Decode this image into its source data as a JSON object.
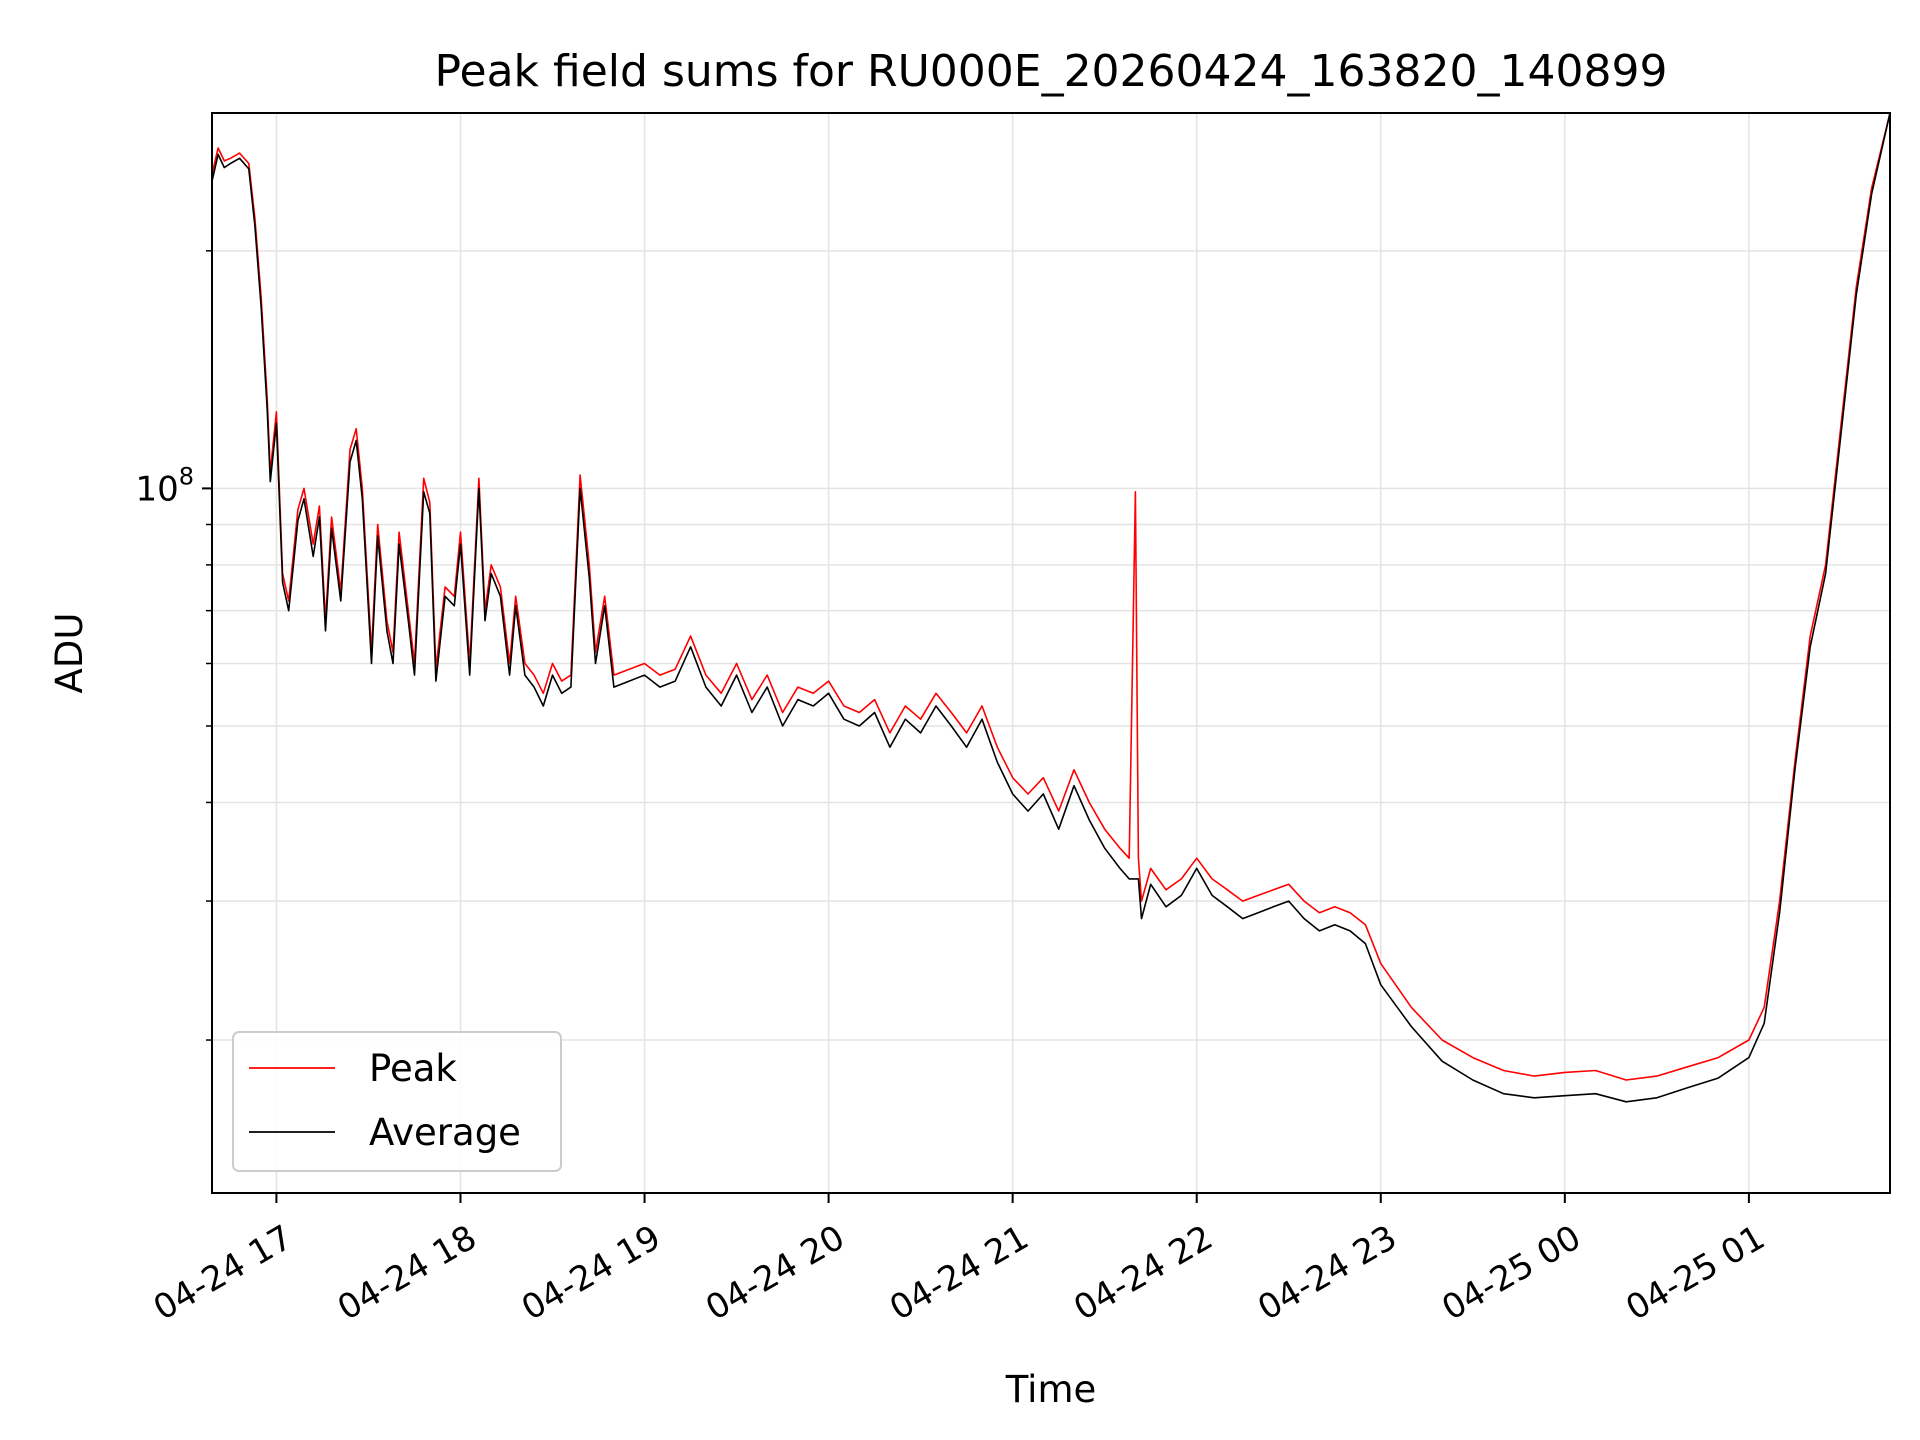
{
  "chart_data": {
    "type": "line",
    "title": "Peak field sums for RU000E_20260424_163820_140899",
    "xlabel": "Time",
    "ylabel": "ADU",
    "y_scale": "log",
    "ylim": [
      12800000,
      299000000
    ],
    "xlim": [
      "04-24 16:39",
      "04-25 01:46"
    ],
    "grid": true,
    "legend_position": "lower-left",
    "x_tick_labels": [
      "04-24 17",
      "04-24 18",
      "04-24 19",
      "04-24 20",
      "04-24 21",
      "04-24 22",
      "04-24 23",
      "04-25 00",
      "04-25 01"
    ],
    "x_ticks": [
      "04-24 17:00",
      "04-24 18:00",
      "04-24 19:00",
      "04-24 20:00",
      "04-24 21:00",
      "04-24 22:00",
      "04-24 23:00",
      "04-25 00:00",
      "04-25 01:00"
    ],
    "y_tick_label": "10^8",
    "y_tick_value": 100000000,
    "series": [
      {
        "name": "Peak",
        "color": "#ff0000",
        "x": [
          "04-24 16:39",
          "04-24 16:41",
          "04-24 16:43",
          "04-24 16:45",
          "04-24 16:48",
          "04-24 16:51",
          "04-24 16:53",
          "04-24 16:55",
          "04-24 16:57",
          "04-24 16:58",
          "04-24 17:00",
          "04-24 17:02",
          "04-24 17:04",
          "04-24 17:07",
          "04-24 17:09",
          "04-24 17:12",
          "04-24 17:14",
          "04-24 17:16",
          "04-24 17:18",
          "04-24 17:21",
          "04-24 17:24",
          "04-24 17:26",
          "04-24 17:28",
          "04-24 17:31",
          "04-24 17:33",
          "04-24 17:36",
          "04-24 17:38",
          "04-24 17:40",
          "04-24 17:43",
          "04-24 17:45",
          "04-24 17:48",
          "04-24 17:50",
          "04-24 17:52",
          "04-24 17:55",
          "04-24 17:58",
          "04-24 18:00",
          "04-24 18:03",
          "04-24 18:06",
          "04-24 18:08",
          "04-24 18:10",
          "04-24 18:13",
          "04-24 18:16",
          "04-24 18:18",
          "04-24 18:21",
          "04-24 18:24",
          "04-24 18:27",
          "04-24 18:30",
          "04-24 18:33",
          "04-24 18:36",
          "04-24 18:39",
          "04-24 18:42",
          "04-24 18:44",
          "04-24 18:47",
          "04-24 18:50",
          "04-24 18:55",
          "04-24 19:00",
          "04-24 19:05",
          "04-24 19:10",
          "04-24 19:15",
          "04-24 19:20",
          "04-24 19:25",
          "04-24 19:30",
          "04-24 19:35",
          "04-24 19:40",
          "04-24 19:45",
          "04-24 19:50",
          "04-24 19:55",
          "04-24 20:00",
          "04-24 20:05",
          "04-24 20:10",
          "04-24 20:15",
          "04-24 20:20",
          "04-24 20:25",
          "04-24 20:30",
          "04-24 20:35",
          "04-24 20:40",
          "04-24 20:45",
          "04-24 20:50",
          "04-24 20:55",
          "04-24 21:00",
          "04-24 21:05",
          "04-24 21:10",
          "04-24 21:15",
          "04-24 21:20",
          "04-24 21:25",
          "04-24 21:30",
          "04-24 21:35",
          "04-24 21:38",
          "04-24 21:40",
          "04-24 21:41",
          "04-24 21:42",
          "04-24 21:45",
          "04-24 21:50",
          "04-24 21:55",
          "04-24 22:00",
          "04-24 22:05",
          "04-24 22:10",
          "04-24 22:15",
          "04-24 22:20",
          "04-24 22:25",
          "04-24 22:30",
          "04-24 22:35",
          "04-24 22:40",
          "04-24 22:45",
          "04-24 22:50",
          "04-24 22:55",
          "04-24 23:00",
          "04-24 23:10",
          "04-24 23:20",
          "04-24 23:30",
          "04-24 23:40",
          "04-24 23:50",
          "04-25 00:00",
          "04-25 00:10",
          "04-25 00:20",
          "04-25 00:30",
          "04-25 00:40",
          "04-25 00:50",
          "04-25 01:00",
          "04-25 01:05",
          "04-25 01:10",
          "04-25 01:15",
          "04-25 01:20",
          "04-25 01:25",
          "04-25 01:30",
          "04-25 01:35",
          "04-25 01:40",
          "04-25 01:46"
        ],
        "values": [
          250000000,
          270000000,
          260000000,
          262000000,
          266000000,
          258000000,
          220000000,
          175000000,
          130000000,
          105000000,
          125000000,
          78000000,
          72000000,
          94000000,
          100000000,
          85000000,
          95000000,
          68000000,
          92000000,
          74000000,
          112000000,
          119000000,
          100000000,
          62000000,
          90000000,
          68000000,
          62000000,
          88000000,
          70000000,
          60000000,
          103000000,
          96000000,
          59000000,
          75000000,
          73000000,
          88000000,
          60000000,
          103000000,
          70000000,
          80000000,
          75000000,
          60000000,
          73000000,
          60000000,
          58000000,
          55000000,
          60000000,
          57000000,
          58000000,
          104000000,
          80000000,
          62000000,
          73000000,
          58000000,
          59000000,
          60000000,
          58000000,
          59000000,
          65000000,
          58000000,
          55000000,
          60000000,
          54000000,
          58000000,
          52000000,
          56000000,
          55000000,
          57000000,
          53000000,
          52000000,
          54000000,
          49000000,
          53000000,
          51000000,
          55000000,
          52000000,
          49000000,
          53000000,
          47000000,
          43000000,
          41000000,
          43000000,
          39000000,
          44000000,
          40000000,
          37000000,
          35000000,
          34000000,
          99000000,
          34000000,
          30000000,
          33000000,
          31000000,
          32000000,
          34000000,
          32000000,
          31000000,
          30000000,
          30500000,
          31000000,
          31500000,
          30000000,
          29000000,
          29500000,
          29000000,
          28000000,
          25000000,
          22000000,
          20000000,
          19000000,
          18300000,
          18000000,
          18200000,
          18300000,
          17800000,
          18000000,
          18500000,
          19000000,
          20000000,
          22000000,
          30000000,
          45000000,
          65000000,
          80000000,
          120000000,
          180000000,
          240000000,
          299000000
        ]
      },
      {
        "name": "Average",
        "color": "#000000",
        "x": [
          "04-24 16:39",
          "04-24 16:41",
          "04-24 16:43",
          "04-24 16:45",
          "04-24 16:48",
          "04-24 16:51",
          "04-24 16:53",
          "04-24 16:55",
          "04-24 16:57",
          "04-24 16:58",
          "04-24 17:00",
          "04-24 17:02",
          "04-24 17:04",
          "04-24 17:07",
          "04-24 17:09",
          "04-24 17:12",
          "04-24 17:14",
          "04-24 17:16",
          "04-24 17:18",
          "04-24 17:21",
          "04-24 17:24",
          "04-24 17:26",
          "04-24 17:28",
          "04-24 17:31",
          "04-24 17:33",
          "04-24 17:36",
          "04-24 17:38",
          "04-24 17:40",
          "04-24 17:43",
          "04-24 17:45",
          "04-24 17:48",
          "04-24 17:50",
          "04-24 17:52",
          "04-24 17:55",
          "04-24 17:58",
          "04-24 18:00",
          "04-24 18:03",
          "04-24 18:06",
          "04-24 18:08",
          "04-24 18:10",
          "04-24 18:13",
          "04-24 18:16",
          "04-24 18:18",
          "04-24 18:21",
          "04-24 18:24",
          "04-24 18:27",
          "04-24 18:30",
          "04-24 18:33",
          "04-24 18:36",
          "04-24 18:39",
          "04-24 18:42",
          "04-24 18:44",
          "04-24 18:47",
          "04-24 18:50",
          "04-24 18:55",
          "04-24 19:00",
          "04-24 19:05",
          "04-24 19:10",
          "04-24 19:15",
          "04-24 19:20",
          "04-24 19:25",
          "04-24 19:30",
          "04-24 19:35",
          "04-24 19:40",
          "04-24 19:45",
          "04-24 19:50",
          "04-24 19:55",
          "04-24 20:00",
          "04-24 20:05",
          "04-24 20:10",
          "04-24 20:15",
          "04-24 20:20",
          "04-24 20:25",
          "04-24 20:30",
          "04-24 20:35",
          "04-24 20:40",
          "04-24 20:45",
          "04-24 20:50",
          "04-24 20:55",
          "04-24 21:00",
          "04-24 21:05",
          "04-24 21:10",
          "04-24 21:15",
          "04-24 21:20",
          "04-24 21:25",
          "04-24 21:30",
          "04-24 21:35",
          "04-24 21:38",
          "04-24 21:40",
          "04-24 21:41",
          "04-24 21:42",
          "04-24 21:45",
          "04-24 21:50",
          "04-24 21:55",
          "04-24 22:00",
          "04-24 22:05",
          "04-24 22:10",
          "04-24 22:15",
          "04-24 22:20",
          "04-24 22:25",
          "04-24 22:30",
          "04-24 22:35",
          "04-24 22:40",
          "04-24 22:45",
          "04-24 22:50",
          "04-24 22:55",
          "04-24 23:00",
          "04-24 23:10",
          "04-24 23:20",
          "04-24 23:30",
          "04-24 23:40",
          "04-24 23:50",
          "04-25 00:00",
          "04-25 00:10",
          "04-25 00:20",
          "04-25 00:30",
          "04-25 00:40",
          "04-25 00:50",
          "04-25 01:00",
          "04-25 01:05",
          "04-25 01:10",
          "04-25 01:15",
          "04-25 01:20",
          "04-25 01:25",
          "04-25 01:30",
          "04-25 01:35",
          "04-25 01:40",
          "04-25 01:46"
        ],
        "values": [
          245000000,
          265000000,
          255000000,
          258000000,
          262000000,
          254000000,
          215000000,
          170000000,
          126000000,
          102000000,
          121000000,
          76000000,
          70000000,
          91000000,
          97000000,
          82000000,
          92000000,
          66000000,
          89000000,
          72000000,
          108000000,
          115000000,
          97000000,
          60000000,
          87000000,
          66000000,
          60000000,
          85000000,
          68000000,
          58000000,
          99000000,
          93000000,
          57000000,
          73000000,
          71000000,
          85000000,
          58000000,
          100000000,
          68000000,
          78000000,
          73000000,
          58000000,
          71000000,
          58000000,
          56000000,
          53000000,
          58000000,
          55000000,
          56000000,
          100000000,
          77000000,
          60000000,
          71000000,
          56000000,
          57000000,
          58000000,
          56000000,
          57000000,
          63000000,
          56000000,
          53000000,
          58000000,
          52000000,
          56000000,
          50000000,
          54000000,
          53000000,
          55000000,
          51000000,
          50000000,
          52000000,
          47000000,
          51000000,
          49000000,
          53000000,
          50000000,
          47000000,
          51000000,
          45000000,
          41000000,
          39000000,
          41000000,
          37000000,
          42000000,
          38000000,
          35000000,
          33000000,
          32000000,
          32000000,
          32000000,
          28500000,
          31500000,
          29500000,
          30500000,
          33000000,
          30500000,
          29500000,
          28500000,
          29000000,
          29500000,
          30000000,
          28500000,
          27500000,
          28000000,
          27500000,
          26500000,
          23500000,
          20800000,
          18800000,
          17800000,
          17100000,
          16900000,
          17000000,
          17100000,
          16700000,
          16900000,
          17400000,
          17900000,
          19000000,
          21000000,
          29000000,
          44000000,
          63000000,
          78000000,
          117000000,
          176000000,
          236000000,
          299000000
        ]
      }
    ]
  }
}
